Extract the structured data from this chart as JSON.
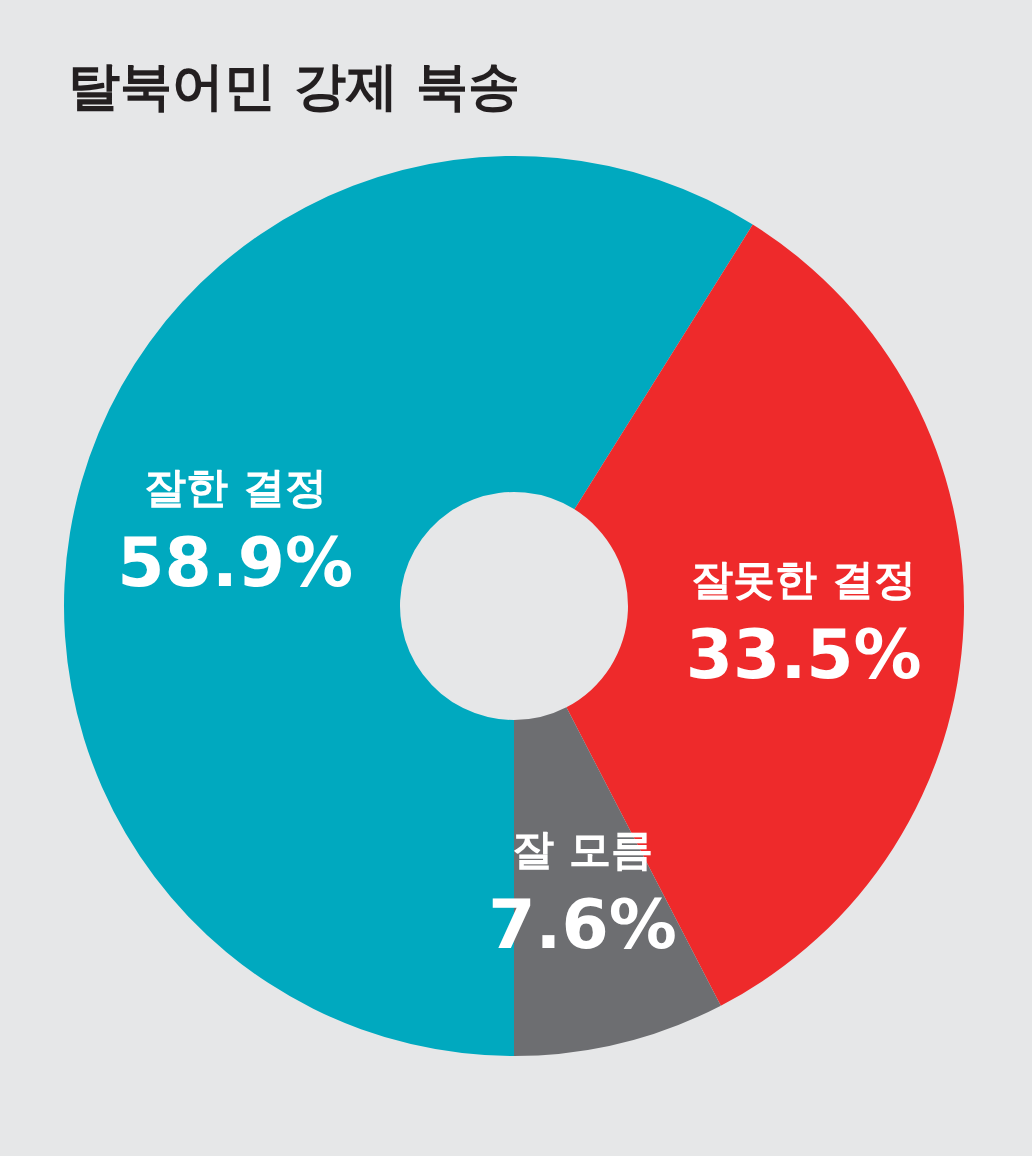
{
  "chart_data": {
    "type": "donut",
    "title": "탈북어민 강제 북송",
    "categories": [
      "잘한 결정",
      "잘못한 결정",
      "잘 모름"
    ],
    "values": [
      58.9,
      33.5,
      7.6
    ],
    "value_labels": [
      "58.9%",
      "33.5%",
      "7.6%"
    ],
    "colors": [
      "#00a9bf",
      "#ee2a2b",
      "#6d6e71"
    ]
  }
}
